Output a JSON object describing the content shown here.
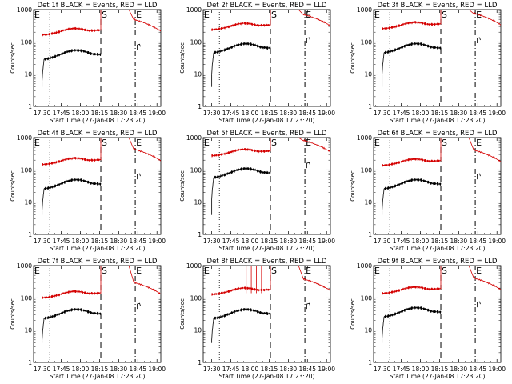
{
  "chart_data": {
    "type": "line",
    "shared": {
      "xlabel": "Start Time (27-Jan-08 17:23:20)",
      "ylabel": "Counts/sec",
      "x_ticks": [
        "17:30",
        "17:45",
        "18:00",
        "18:15",
        "18:30",
        "18:45",
        "19:00"
      ],
      "y_ticks": [
        "1",
        "10",
        "100",
        "1000"
      ],
      "y_scale": "log",
      "ylim": [
        1,
        1000
      ],
      "xlim": [
        "17:23:20",
        "19:03"
      ],
      "markers": {
        "left": {
          "label": "E",
          "time": "17:25",
          "style": "none"
        },
        "dotted": {
          "label": "",
          "time": "17:36",
          "style": "dotted"
        },
        "dashed_S": {
          "label": "S",
          "time": "18:16",
          "style": "dashed"
        },
        "dashdot_E": {
          "label": "E",
          "time": "18:43",
          "style": "dash-dot"
        }
      },
      "series_colors": {
        "events": "#000000",
        "lld": "#d40000"
      }
    },
    "panels": [
      {
        "title": "Det 1f BLACK = Events, RED = LLD",
        "x_ticks": [
          "17:30",
          "17:45",
          "18:00",
          "18:15",
          "18:30",
          "18:45",
          "19:00"
        ],
        "events_scale": 50,
        "lld_scale": 180,
        "lld_spikes": []
      },
      {
        "title": "Det 2f BLACK = Events, RED = LLD",
        "x_ticks": [
          "17:30",
          "17:45",
          "18:00",
          "18:15",
          "18:30",
          "18:45",
          "19:00"
        ],
        "events_scale": 80,
        "lld_scale": 260,
        "lld_spikes": []
      },
      {
        "title": "Det 3f BLACK = Events, RED = LLD",
        "x_ticks": [
          "17:30",
          "17:45",
          "18:00",
          "18:15",
          "18:30",
          "18:45",
          "19:00"
        ],
        "events_scale": 80,
        "lld_scale": 280,
        "lld_spikes": []
      },
      {
        "title": "Det 4f BLACK = Events, RED = LLD",
        "x_ticks": [
          "17:30",
          "17:45",
          "18:00",
          "18:15",
          "18:30",
          "18:45",
          "19:00"
        ],
        "events_scale": 45,
        "lld_scale": 160,
        "lld_spikes": []
      },
      {
        "title": "Det 5f BLACK = Events, RED = LLD",
        "x_ticks": [
          "17:30",
          "17:45",
          "18:00",
          "18:15",
          "18:30",
          "18:45",
          "19:00"
        ],
        "events_scale": 100,
        "lld_scale": 300,
        "lld_spikes": []
      },
      {
        "title": "Det 6f BLACK = Events, RED = LLD",
        "x_ticks": [
          "17:30",
          "17:45",
          "18:00",
          "18:15",
          "18:30",
          "18:45",
          "19:00"
        ],
        "events_scale": 45,
        "lld_scale": 150,
        "lld_spikes": []
      },
      {
        "title": "Det 7f BLACK = Events, RED = LLD",
        "x_ticks": [
          "17:30",
          "17:45",
          "18:00",
          "18:15",
          "18:30",
          "18:45",
          "19:00"
        ],
        "events_scale": 40,
        "lld_scale": 110,
        "lld_spikes": []
      },
      {
        "title": "Det 8f BLACK = Events, RED = LLD",
        "x_ticks": [
          "17:30",
          "17:45",
          "18:00",
          "18:15",
          "18:30",
          "18:45",
          "19:00"
        ],
        "events_scale": 40,
        "lld_scale": 140,
        "lld_spikes": [
          {
            "from": "17:57",
            "to": "18:01"
          },
          {
            "from": "18:05",
            "to": "18:09"
          }
        ]
      },
      {
        "title": "Det 9f BLACK = Events, RED = LLD",
        "x_ticks": [
          "17:30",
          "17:45",
          "18:00",
          "18:15",
          "18:30",
          "18:45",
          "19:00"
        ],
        "events_scale": 45,
        "lld_scale": 150,
        "lld_spikes": []
      }
    ]
  }
}
